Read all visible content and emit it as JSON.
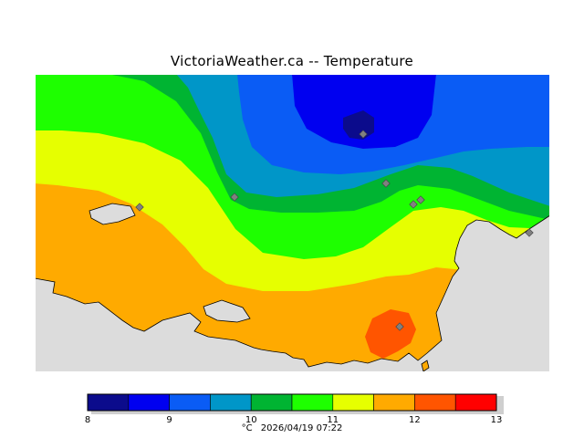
{
  "title": "VictoriaWeather.ca -- Temperature",
  "caption": {
    "unit": "°C",
    "timestamp": "2026/04/19 07:22"
  },
  "legend": {
    "ticks": [
      "8",
      "9",
      "10",
      "11",
      "12",
      "13"
    ],
    "bins": [
      {
        "min": 8.0,
        "max": 8.5,
        "color": "#0b0b8c"
      },
      {
        "min": 8.5,
        "max": 9.0,
        "color": "#0000f0"
      },
      {
        "min": 9.0,
        "max": 9.5,
        "color": "#0a5cf5"
      },
      {
        "min": 9.5,
        "max": 10.0,
        "color": "#0096c8"
      },
      {
        "min": 10.0,
        "max": 10.5,
        "color": "#00b432"
      },
      {
        "min": 10.5,
        "max": 11.0,
        "color": "#1eff00"
      },
      {
        "min": 11.0,
        "max": 11.5,
        "color": "#e6ff00"
      },
      {
        "min": 11.5,
        "max": 12.0,
        "color": "#ffaa00"
      },
      {
        "min": 12.0,
        "max": 12.5,
        "color": "#ff5500"
      },
      {
        "min": 12.5,
        "max": 13.0,
        "color": "#ff0000"
      }
    ]
  },
  "map": {
    "water_color": "#dcdcdc",
    "station_color": "#808080"
  }
}
